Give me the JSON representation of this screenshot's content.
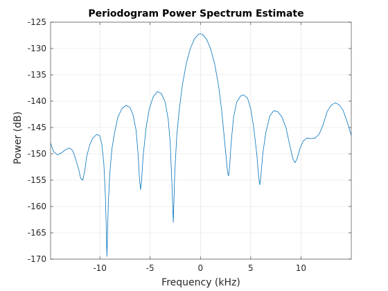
{
  "chart_data": {
    "type": "line",
    "title": "Periodogram Power Spectrum Estimate",
    "xlabel": "Frequency (kHz)",
    "ylabel": "Power (dB)",
    "xlim": [
      -14.9,
      15
    ],
    "ylim": [
      -170,
      -125
    ],
    "xticks": [
      -10,
      -5,
      0,
      5,
      10
    ],
    "yticks": [
      -170,
      -165,
      -160,
      -155,
      -150,
      -145,
      -140,
      -135,
      -130,
      -125
    ],
    "grid": true,
    "line_color": "#0072BD",
    "series": [
      {
        "points": [
          [
            -14.9,
            -148.0
          ],
          [
            -14.6,
            -149.6
          ],
          [
            -14.2,
            -150.2
          ],
          [
            -13.8,
            -149.8
          ],
          [
            -13.4,
            -149.2
          ],
          [
            -13.0,
            -148.9
          ],
          [
            -12.7,
            -149.4
          ],
          [
            -12.4,
            -151.0
          ],
          [
            -12.1,
            -153.0
          ],
          [
            -11.9,
            -154.7
          ],
          [
            -11.7,
            -155.0
          ],
          [
            -11.5,
            -153.2
          ],
          [
            -11.3,
            -150.4
          ],
          [
            -11.0,
            -148.3
          ],
          [
            -10.7,
            -147.0
          ],
          [
            -10.3,
            -146.3
          ],
          [
            -10.0,
            -146.6
          ],
          [
            -9.8,
            -148.2
          ],
          [
            -9.6,
            -152.0
          ],
          [
            -9.45,
            -158.0
          ],
          [
            -9.35,
            -165.0
          ],
          [
            -9.3,
            -169.5
          ],
          [
            -9.25,
            -166.0
          ],
          [
            -9.15,
            -159.0
          ],
          [
            -9.0,
            -153.5
          ],
          [
            -8.8,
            -149.0
          ],
          [
            -8.5,
            -145.6
          ],
          [
            -8.2,
            -143.0
          ],
          [
            -7.8,
            -141.4
          ],
          [
            -7.4,
            -140.8
          ],
          [
            -7.0,
            -141.2
          ],
          [
            -6.7,
            -142.6
          ],
          [
            -6.4,
            -145.5
          ],
          [
            -6.2,
            -150.0
          ],
          [
            -6.05,
            -155.0
          ],
          [
            -5.95,
            -156.8
          ],
          [
            -5.85,
            -155.0
          ],
          [
            -5.7,
            -150.5
          ],
          [
            -5.4,
            -145.0
          ],
          [
            -5.1,
            -141.6
          ],
          [
            -4.7,
            -139.2
          ],
          [
            -4.3,
            -138.2
          ],
          [
            -3.9,
            -138.5
          ],
          [
            -3.5,
            -140.2
          ],
          [
            -3.2,
            -143.5
          ],
          [
            -3.0,
            -148.0
          ],
          [
            -2.85,
            -155.0
          ],
          [
            -2.75,
            -160.0
          ],
          [
            -2.7,
            -163.0
          ],
          [
            -2.65,
            -160.0
          ],
          [
            -2.55,
            -153.5
          ],
          [
            -2.35,
            -146.5
          ],
          [
            -2.1,
            -141.5
          ],
          [
            -1.8,
            -137.0
          ],
          [
            -1.4,
            -132.8
          ],
          [
            -1.0,
            -130.0
          ],
          [
            -0.6,
            -128.2
          ],
          [
            -0.2,
            -127.3
          ],
          [
            0.0,
            -127.2
          ],
          [
            0.2,
            -127.3
          ],
          [
            0.6,
            -128.2
          ],
          [
            1.0,
            -130.0
          ],
          [
            1.4,
            -132.8
          ],
          [
            1.8,
            -137.0
          ],
          [
            2.1,
            -141.5
          ],
          [
            2.35,
            -146.5
          ],
          [
            2.55,
            -150.5
          ],
          [
            2.7,
            -153.5
          ],
          [
            2.8,
            -154.2
          ],
          [
            2.9,
            -152.5
          ],
          [
            3.05,
            -148.0
          ],
          [
            3.3,
            -143.0
          ],
          [
            3.6,
            -140.2
          ],
          [
            4.0,
            -139.0
          ],
          [
            4.3,
            -138.8
          ],
          [
            4.7,
            -139.5
          ],
          [
            5.0,
            -141.5
          ],
          [
            5.3,
            -145.0
          ],
          [
            5.6,
            -150.0
          ],
          [
            5.8,
            -154.5
          ],
          [
            5.9,
            -155.9
          ],
          [
            6.0,
            -154.5
          ],
          [
            6.2,
            -150.0
          ],
          [
            6.5,
            -146.0
          ],
          [
            6.9,
            -142.8
          ],
          [
            7.3,
            -141.8
          ],
          [
            7.7,
            -142.0
          ],
          [
            8.1,
            -143.0
          ],
          [
            8.5,
            -145.0
          ],
          [
            8.9,
            -148.5
          ],
          [
            9.2,
            -151.0
          ],
          [
            9.4,
            -151.7
          ],
          [
            9.6,
            -151.0
          ],
          [
            9.9,
            -149.0
          ],
          [
            10.2,
            -147.6
          ],
          [
            10.6,
            -147.0
          ],
          [
            11.0,
            -147.1
          ],
          [
            11.4,
            -147.0
          ],
          [
            11.8,
            -146.3
          ],
          [
            12.2,
            -144.5
          ],
          [
            12.6,
            -142.0
          ],
          [
            13.0,
            -140.8
          ],
          [
            13.4,
            -140.3
          ],
          [
            13.8,
            -140.7
          ],
          [
            14.2,
            -141.8
          ],
          [
            14.6,
            -144.0
          ],
          [
            15.0,
            -146.5
          ]
        ]
      }
    ]
  }
}
